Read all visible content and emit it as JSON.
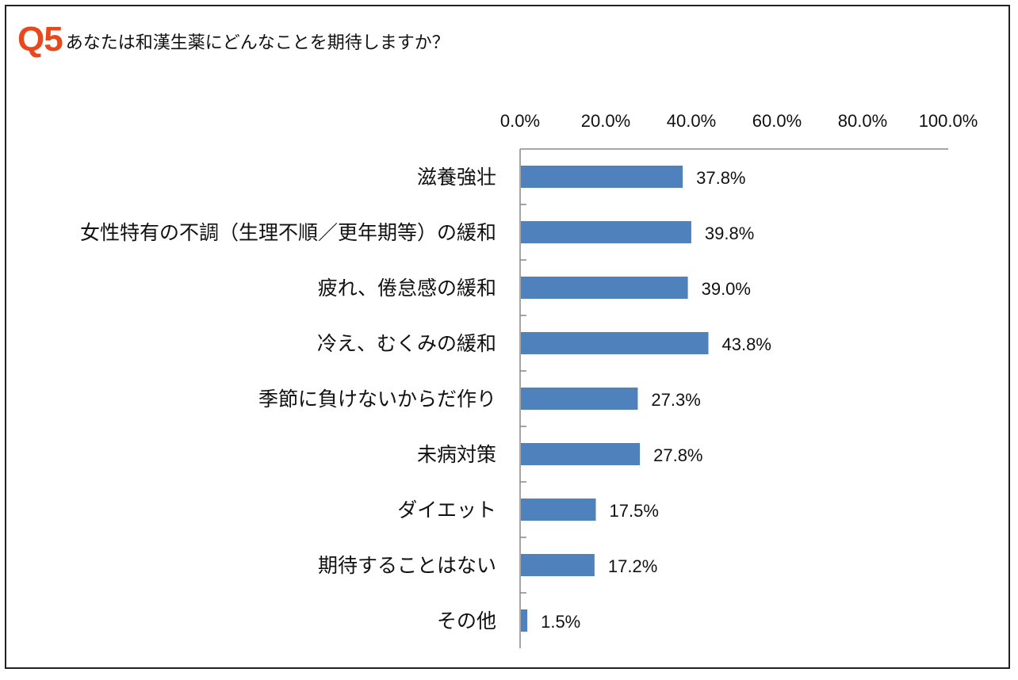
{
  "question": {
    "number": "Q5",
    "text": "あなたは和漢生薬にどんなことを期待しますか？"
  },
  "colors": {
    "bar": "#4f81bd",
    "accent": "#e8481c"
  },
  "chart_data": {
    "type": "bar",
    "orientation": "horizontal",
    "categories": [
      "滋養強壮",
      "女性特有の不調（生理不順／更年期等）の緩和",
      "疲れ、倦怠感の緩和",
      "冷え、むくみの緩和",
      "季節に負けないからだ作り",
      "未病対策",
      "ダイエット",
      "期待することはない",
      "その他"
    ],
    "values": [
      37.8,
      39.8,
      39.0,
      43.8,
      27.3,
      27.8,
      17.5,
      17.2,
      1.5
    ],
    "value_labels": [
      "37.8%",
      "39.8%",
      "39.0%",
      "43.8%",
      "27.3%",
      "27.8%",
      "17.5%",
      "17.2%",
      "1.5%"
    ],
    "xlim": [
      0,
      100
    ],
    "x_ticks": [
      0,
      20,
      40,
      60,
      80,
      100
    ],
    "x_tick_labels": [
      "0.0%",
      "20.0%",
      "40.0%",
      "60.0%",
      "80.0%",
      "100.0%"
    ],
    "grid": false,
    "legend": "none"
  }
}
